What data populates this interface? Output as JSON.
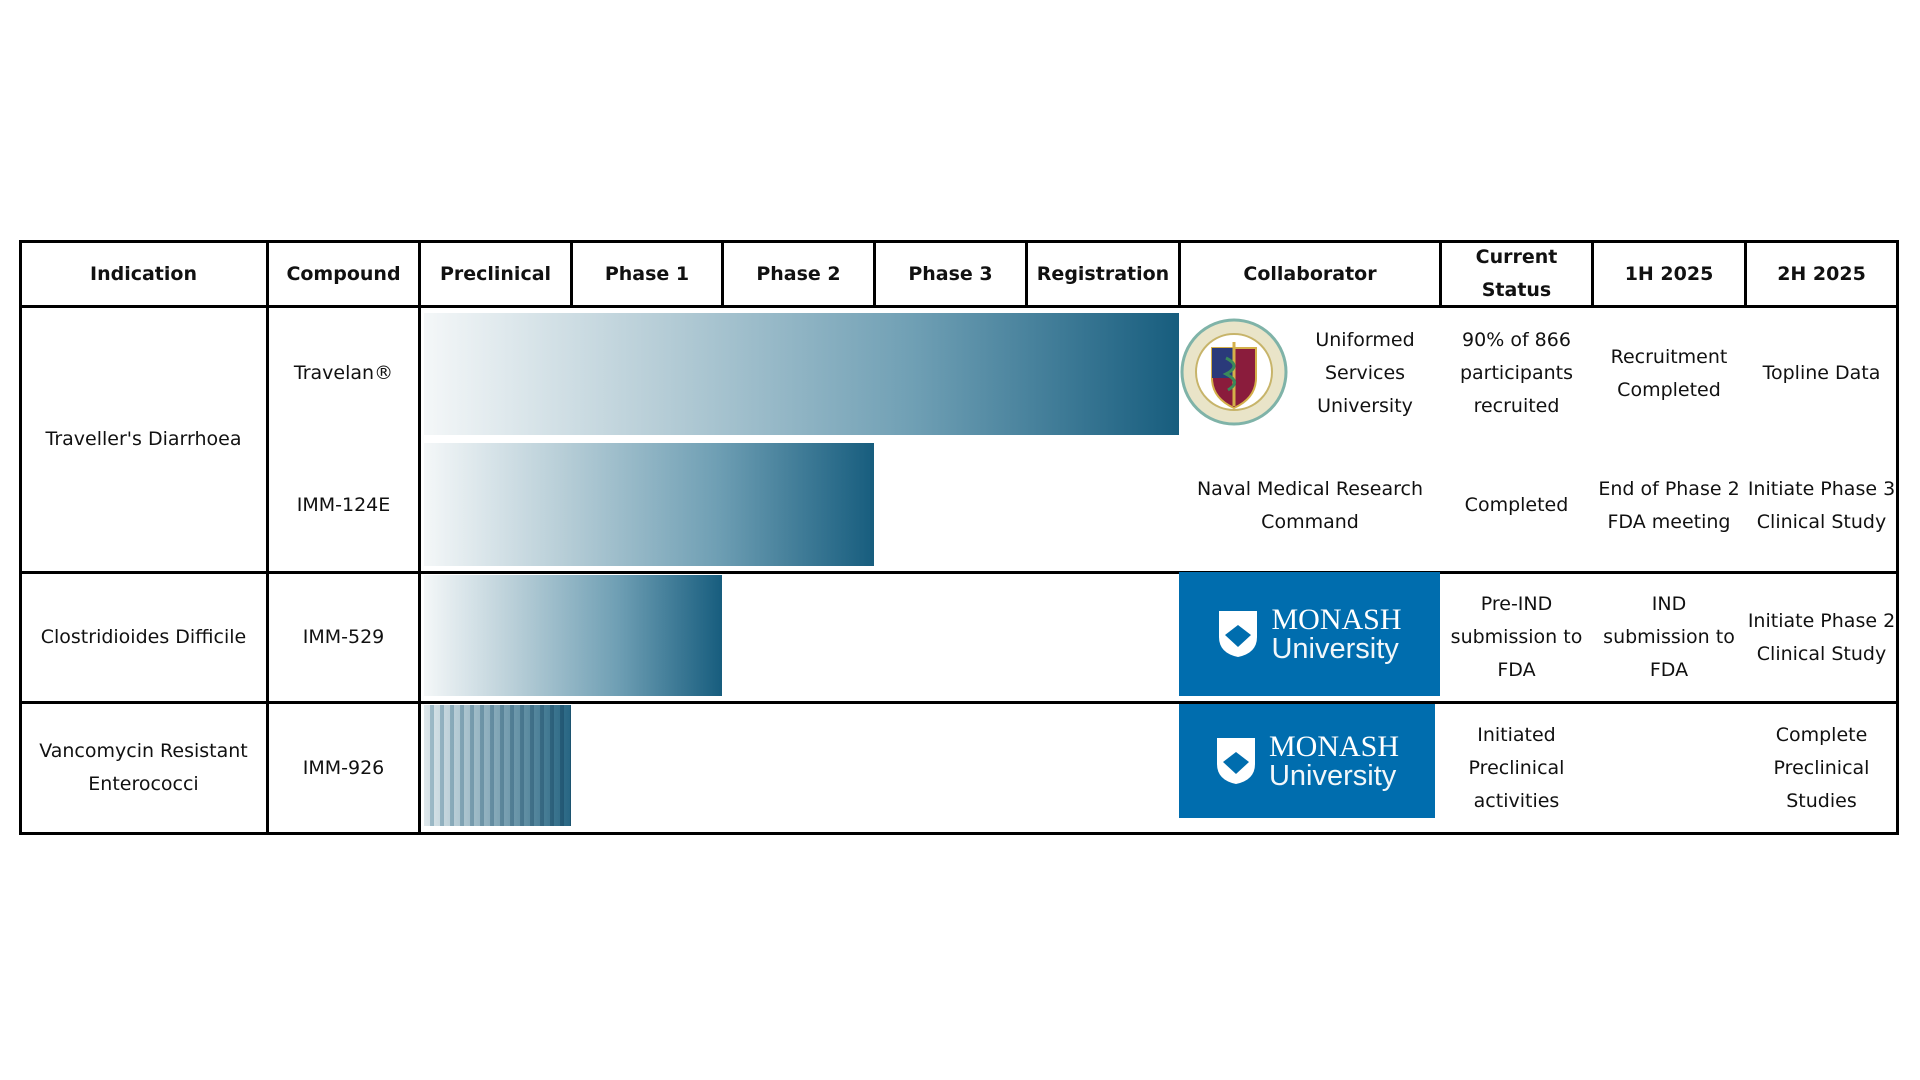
{
  "table": {
    "headers": [
      "Indication",
      "Compound",
      "Preclinical",
      "Phase 1",
      "Phase 2",
      "Phase 3",
      "Registration",
      "Collaborator",
      "Current Status",
      "1H 2025",
      "2H 2025"
    ],
    "groups": [
      {
        "indication": "Traveller's Diarrhoea",
        "rows": [
          {
            "compound": "Travelan®",
            "collaborator": "Uniformed Services University",
            "current_status": "90% of 866 participants recruited",
            "h1_2025": "Recruitment Completed",
            "h2_2025": "Topline Data"
          },
          {
            "compound": "IMM-124E",
            "collaborator": "Naval Medical Research Command",
            "current_status": "Completed",
            "h1_2025": "End of Phase 2 FDA meeting",
            "h2_2025": "Initiate Phase 3 Clinical Study"
          }
        ]
      },
      {
        "indication": "Clostridioides Difficile",
        "rows": [
          {
            "compound": "IMM-529",
            "collaborator": {
              "name": "MONASH",
              "sub": "University"
            },
            "current_status": "Pre-IND submission to FDA",
            "h1_2025": "IND submission to FDA",
            "h2_2025": "Initiate Phase 2 Clinical Study"
          }
        ]
      },
      {
        "indication": "Vancomycin Resistant Enterococci",
        "rows": [
          {
            "compound": "IMM-926",
            "collaborator": {
              "name": "MONASH",
              "sub": "University"
            },
            "current_status": "Initiated Preclinical activities",
            "h2_2025": "Complete Preclinical Studies"
          }
        ]
      }
    ]
  }
}
